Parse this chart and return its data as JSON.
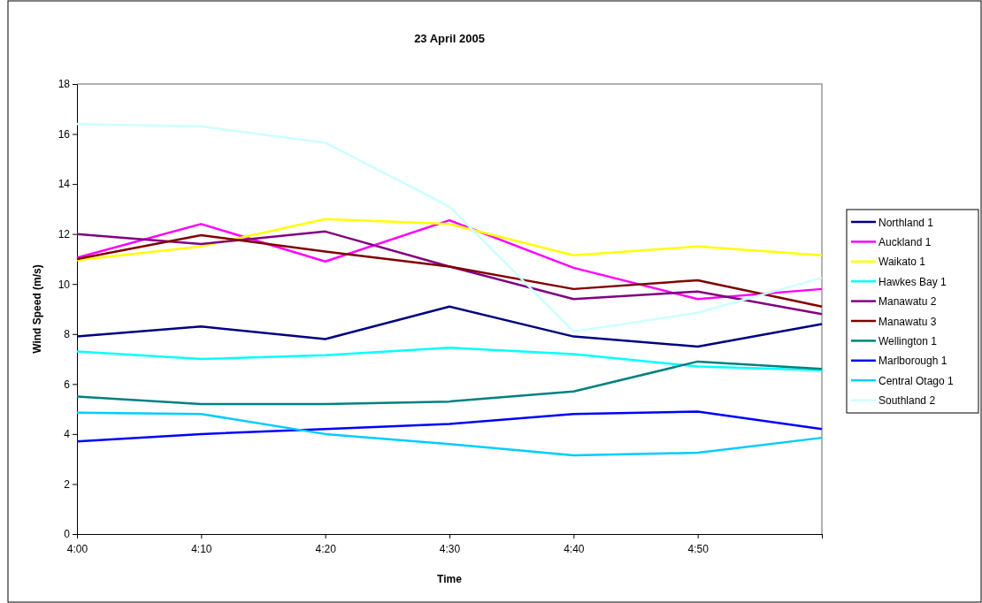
{
  "chart_data": {
    "type": "line",
    "title": "23 April 2005",
    "xlabel": "Time",
    "ylabel": "Wind Speed (m/s)",
    "categories": [
      "4:00",
      "4:10",
      "4:20",
      "4:30",
      "4:40",
      "4:50",
      null
    ],
    "ylim": [
      0,
      18
    ],
    "yticks": [
      0,
      2,
      4,
      6,
      8,
      10,
      12,
      14,
      16,
      18
    ],
    "grid": false,
    "legend": "right",
    "marker": "none",
    "line_style": "solid",
    "series": [
      {
        "name": "Northland 1",
        "color": "#000080",
        "values": [
          7.9,
          8.3,
          7.8,
          9.1,
          7.9,
          7.5,
          8.4
        ]
      },
      {
        "name": "Auckland 1",
        "color": "#ff00ff",
        "values": [
          11.05,
          12.4,
          10.9,
          12.55,
          10.65,
          9.4,
          9.8
        ]
      },
      {
        "name": "Waikato 1",
        "color": "#ffff00",
        "values": [
          10.95,
          11.5,
          12.6,
          12.4,
          11.15,
          11.5,
          11.15
        ]
      },
      {
        "name": "Hawkes Bay 1",
        "color": "#00ffff",
        "values": [
          7.3,
          7.0,
          7.15,
          7.45,
          7.2,
          6.7,
          6.55
        ]
      },
      {
        "name": "Manawatu 2",
        "color": "#800080",
        "values": [
          12.0,
          11.6,
          12.1,
          10.7,
          9.4,
          9.7,
          8.8
        ]
      },
      {
        "name": "Manawatu 3",
        "color": "#800000",
        "values": [
          11.0,
          11.95,
          11.3,
          10.7,
          9.8,
          10.15,
          9.1
        ]
      },
      {
        "name": "Wellington 1",
        "color": "#008080",
        "values": [
          5.5,
          5.2,
          5.2,
          5.3,
          5.7,
          6.9,
          6.6
        ]
      },
      {
        "name": "Marlborough 1",
        "color": "#0000ff",
        "values": [
          3.7,
          4.0,
          4.2,
          4.4,
          4.8,
          4.9,
          4.2
        ]
      },
      {
        "name": "Central Otago 1",
        "color": "#00ccff",
        "values": [
          4.85,
          4.8,
          4.0,
          3.6,
          3.15,
          3.25,
          3.85
        ]
      },
      {
        "name": "Southland 2",
        "color": "#ccffff",
        "values": [
          16.4,
          16.3,
          15.65,
          13.1,
          8.1,
          8.85,
          10.25
        ]
      }
    ]
  }
}
